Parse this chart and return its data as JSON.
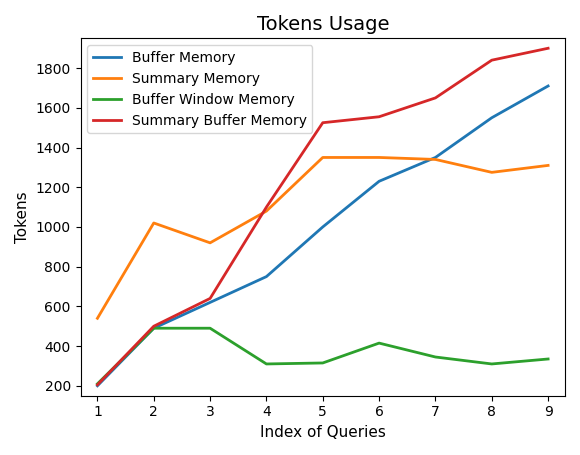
{
  "title": "Tokens Usage",
  "xlabel": "Index of Queries",
  "ylabel": "Tokens",
  "x": [
    1,
    2,
    3,
    4,
    5,
    6,
    7,
    8,
    9
  ],
  "series": {
    "Buffer Memory": {
      "values": [
        200,
        490,
        620,
        750,
        1000,
        1230,
        1350,
        1550,
        1710
      ],
      "color": "#1f77b4"
    },
    "Summary Memory": {
      "values": [
        540,
        1020,
        920,
        1080,
        1350,
        1350,
        1340,
        1275,
        1310
      ],
      "color": "#ff7f0e"
    },
    "Buffer Window Memory": {
      "values": [
        210,
        490,
        490,
        310,
        315,
        415,
        345,
        310,
        335
      ],
      "color": "#2ca02c"
    },
    "Summary Buffer Memory": {
      "values": [
        205,
        500,
        640,
        1100,
        1525,
        1555,
        1650,
        1840,
        1900
      ],
      "color": "#d62728"
    }
  },
  "ylim": [
    150,
    1950
  ],
  "xlim": [
    0.7,
    9.3
  ],
  "legend_loc": "upper left",
  "title_fontsize": 14,
  "label_fontsize": 11,
  "legend_fontsize": 10,
  "linewidth": 2.0
}
